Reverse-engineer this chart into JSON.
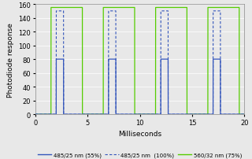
{
  "xlabel": "Milliseconds",
  "ylabel": "Photodiode response",
  "xlim": [
    0,
    20
  ],
  "ylim": [
    0,
    160
  ],
  "yticks": [
    0,
    20,
    40,
    60,
    80,
    100,
    120,
    140,
    160
  ],
  "xticks": [
    0,
    5,
    10,
    15,
    20
  ],
  "blue_solid_color": "#3355bb",
  "blue_dashed_color": "#3355bb",
  "green_color": "#55cc00",
  "blue_solid_peak": 80,
  "blue_dashed_peak": 150,
  "green_peak": 155,
  "cycle_period": 5.0,
  "green_on_start": 1.5,
  "green_on_duration": 3.0,
  "blue_on_start": 2.0,
  "blue_on_duration": 0.7,
  "num_cycles": 4,
  "legend_labels": [
    "485/25 nm (55%)",
    "485/25 nm  (100%)",
    "560/32 nm (75%)"
  ],
  "figsize": [
    3.2,
    2.03
  ],
  "dpi": 100,
  "bg_color": "#e8e8e8"
}
